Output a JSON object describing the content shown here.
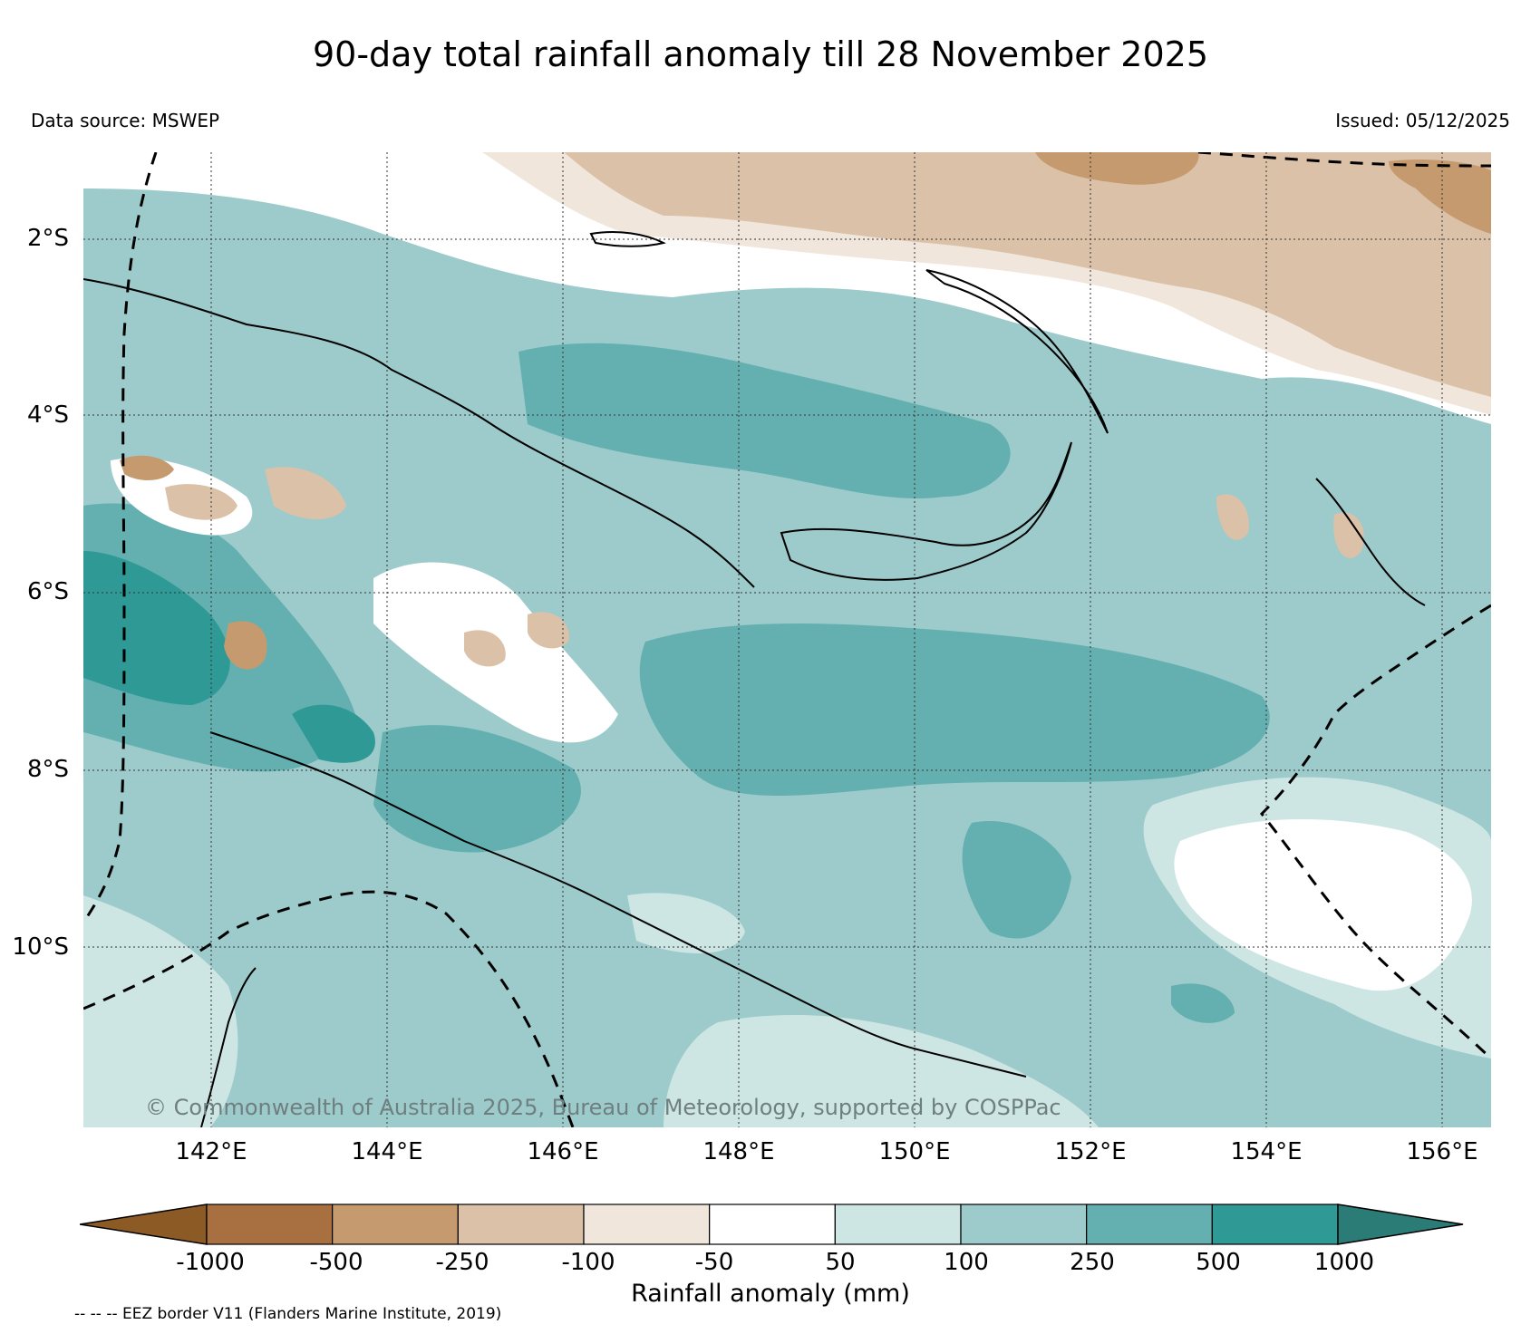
{
  "title": "90-day total rainfall anomaly till 28 November 2025",
  "data_source": "Data source: MSWEP",
  "issued": "Issued: 05/12/2025",
  "credit": "© Commonwealth of Australia 2025, Bureau of Meteorology, supported by COSPPac",
  "eez_note": "-- -- -- EEZ border V11 (Flanders Marine Institute, 2019)",
  "lat_labels": [
    "2°S",
    "4°S",
    "6°S",
    "8°S",
    "10°S"
  ],
  "lon_labels": [
    "142°E",
    "144°E",
    "146°E",
    "148°E",
    "150°E",
    "152°E",
    "154°E",
    "156°E"
  ],
  "colorbar": {
    "label": "Rainfall anomaly (mm)",
    "ticks": [
      "-1000",
      "-500",
      "-250",
      "-100",
      "-50",
      "50",
      "100",
      "250",
      "500",
      "1000"
    ],
    "low_extend_color": "#8c5a24",
    "high_extend_color": "#2b7b77",
    "colors": [
      "#a87040",
      "#c49a6e",
      "#dbc1a8",
      "#f1e6dc",
      "#ffffff",
      "#cde6e4",
      "#9dcbcb",
      "#64b0b1",
      "#2f9995"
    ]
  },
  "land_line_color": "#000000"
}
